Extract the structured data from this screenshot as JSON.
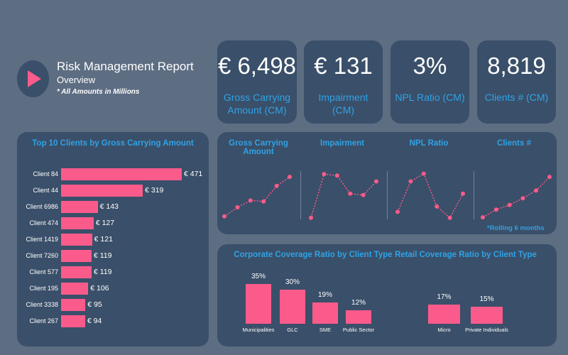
{
  "header": {
    "title": "Risk Management Report",
    "subtitle": "Overview",
    "note": "* All Amounts in Millions",
    "accent_color": "#fb5b8b",
    "logo_icon": "play-triangle-icon"
  },
  "kpis": [
    {
      "value": "€ 6,498",
      "label": "Gross Carrying Amount (CM)"
    },
    {
      "value": "€ 131",
      "label": "Impairment (CM)"
    },
    {
      "value": "3%",
      "label": "NPL Ratio (CM)"
    },
    {
      "value": "8,819",
      "label": "Clients # (CM)"
    }
  ],
  "colors": {
    "page_background": "#5d6d82",
    "card_background": "#3a4f69",
    "accent": "#fb5b8b",
    "title_blue": "#2fa3e6",
    "text": "#ffffff"
  },
  "chart_data": [
    {
      "type": "bar",
      "orientation": "horizontal",
      "title": "Top 10 Clients by Gross Carrying Amount",
      "categories": [
        "Client 84",
        "Client 44",
        "Client 6986",
        "Client 474",
        "Client 1419",
        "Client 7260",
        "Client 577",
        "Client 195",
        "Client 3338",
        "Client 267"
      ],
      "values": [
        471,
        319,
        143,
        127,
        121,
        119,
        119,
        106,
        95,
        94
      ],
      "value_labels": [
        "€ 471",
        "€ 319",
        "€ 143",
        "€ 127",
        "€ 121",
        "€ 119",
        "€ 119",
        "€ 106",
        "€ 95",
        "€ 94"
      ],
      "xlim": [
        0,
        471
      ],
      "grid": false
    },
    {
      "type": "line",
      "title": "Gross Carrying Amount",
      "x": [
        1,
        2,
        3,
        4,
        5,
        6
      ],
      "values": [
        0.05,
        0.25,
        0.4,
        0.38,
        0.72,
        0.92
      ],
      "ylim": [
        0,
        1
      ],
      "line_style": "dotted",
      "markers": true
    },
    {
      "type": "line",
      "title": "Impairment",
      "x": [
        1,
        2,
        3,
        4,
        5,
        6
      ],
      "values": [
        0.02,
        0.98,
        0.95,
        0.55,
        0.52,
        0.82
      ],
      "ylim": [
        0,
        1
      ],
      "line_style": "dotted",
      "markers": true
    },
    {
      "type": "line",
      "title": "NPL Ratio",
      "x": [
        1,
        2,
        3,
        4,
        5,
        6
      ],
      "values": [
        0.15,
        0.82,
        0.99,
        0.27,
        0.02,
        0.55
      ],
      "ylim": [
        0,
        1
      ],
      "line_style": "dotted",
      "markers": true
    },
    {
      "type": "line",
      "title": "Clients #",
      "x": [
        1,
        2,
        3,
        4,
        5,
        6
      ],
      "values": [
        0.03,
        0.2,
        0.3,
        0.45,
        0.62,
        0.92
      ],
      "ylim": [
        0,
        1
      ],
      "line_style": "dotted",
      "markers": true
    },
    {
      "type": "bar",
      "title": "Corporate Coverage Ratio by Client Type",
      "categories": [
        "Municipalities",
        "GLC",
        "SME",
        "Public Sector"
      ],
      "values": [
        35,
        30,
        19,
        12
      ],
      "value_labels": [
        "35%",
        "30%",
        "19%",
        "12%"
      ],
      "ylim": [
        0,
        35
      ],
      "grid": false
    },
    {
      "type": "bar",
      "title": "Retail Coverage Ratio by Client Type",
      "categories": [
        "Micro",
        "Private Individuals"
      ],
      "values": [
        17,
        15
      ],
      "value_labels": [
        "17%",
        "15%"
      ],
      "ylim": [
        0,
        35
      ],
      "grid": false
    }
  ],
  "trend_note": "*Rolling 6 months",
  "trend_titles": [
    "Gross Carrying Amount",
    "Impairment",
    "NPL Ratio",
    "Clients #"
  ]
}
